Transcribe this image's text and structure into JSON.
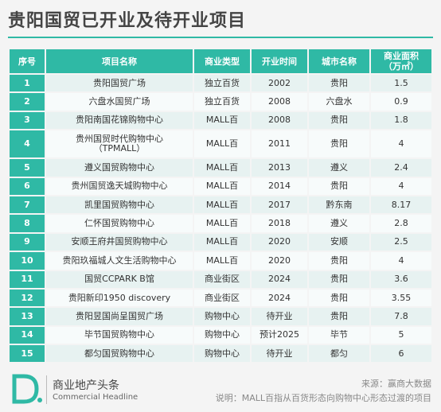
{
  "title": "贵阳国贸已开业及待开业项目",
  "table": {
    "headers": [
      "序号",
      "项目名称",
      "商业类型",
      "开业时间",
      "城市名称",
      "商业面积\n（万㎡）"
    ],
    "rows": [
      {
        "idx": "1",
        "name": "贵阳国贸广场",
        "type": "独立百货",
        "time": "2002",
        "city": "贵阳",
        "area": "1.5"
      },
      {
        "idx": "2",
        "name": "六盘水国贸广场",
        "type": "独立百货",
        "time": "2008",
        "city": "六盘水",
        "area": "0.9"
      },
      {
        "idx": "3",
        "name": "贵阳南国花锦购物中心",
        "type": "MALL百",
        "time": "2008",
        "city": "贵阳",
        "area": "1.8"
      },
      {
        "idx": "4",
        "name": "贵州国贸时代购物中心\n（TPMALL）",
        "type": "MALL百",
        "time": "2011",
        "city": "贵阳",
        "area": "4"
      },
      {
        "idx": "5",
        "name": "遵义国贸购物中心",
        "type": "MALL百",
        "time": "2013",
        "city": "遵义",
        "area": "2.4"
      },
      {
        "idx": "6",
        "name": "贵州国贸逸天城购物中心",
        "type": "MALL百",
        "time": "2014",
        "city": "贵阳",
        "area": "4"
      },
      {
        "idx": "7",
        "name": "凯里国贸购物中心",
        "type": "MALL百",
        "time": "2017",
        "city": "黔东南",
        "area": "8.17"
      },
      {
        "idx": "8",
        "name": "仁怀国贸购物中心",
        "type": "MALL百",
        "time": "2018",
        "city": "遵义",
        "area": "2.8"
      },
      {
        "idx": "9",
        "name": "安顺王府井国贸购物中心",
        "type": "MALL百",
        "time": "2020",
        "city": "安顺",
        "area": "2.5"
      },
      {
        "idx": "10",
        "name": "贵阳玖福城人文生活购物中心",
        "type": "MALL百",
        "time": "2020",
        "city": "贵阳",
        "area": "4"
      },
      {
        "idx": "11",
        "name": "国贸CCPARK B馆",
        "type": "商业街区",
        "time": "2024",
        "city": "贵阳",
        "area": "3.6"
      },
      {
        "idx": "12",
        "name": "贵阳新印1950 discovery",
        "type": "商业街区",
        "time": "2024",
        "city": "贵阳",
        "area": "3.55"
      },
      {
        "idx": "13",
        "name": "贵阳昱国尚呈国贸广场",
        "type": "购物中心",
        "time": "待开业",
        "city": "贵阳",
        "area": "7.8"
      },
      {
        "idx": "14",
        "name": "毕节国贸购物中心",
        "type": "购物中心",
        "time": "预计2025",
        "city": "毕节",
        "area": "5"
      },
      {
        "idx": "15",
        "name": "都匀国贸购物中心",
        "type": "购物中心",
        "time": "待开业",
        "city": "都匀",
        "area": "6"
      }
    ]
  },
  "footer": {
    "brand_cn": "商业地产头条",
    "brand_en": "Commercial Headline",
    "source": "来源：赢商大数据",
    "note": "说明：MALL百指从百货形态向购物中心形态过渡的项目",
    "logo_icon": "d-logo-icon",
    "accent": "#2fb9a5"
  }
}
